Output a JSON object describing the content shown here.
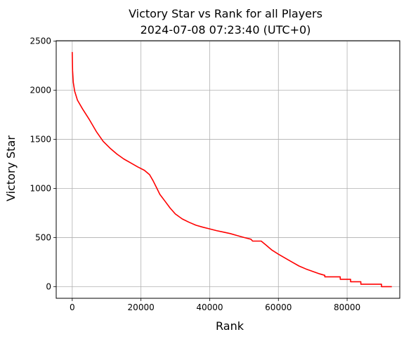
{
  "chart_data": {
    "type": "line",
    "title": "Victory Star vs Rank for all Players",
    "subtitle": "2024-07-08 07:23:40 (UTC+0)",
    "xlabel": "Rank",
    "ylabel": "Victory Star",
    "xlim": [
      -4670,
      95320
    ],
    "ylim": [
      -119,
      2505
    ],
    "xticks": [
      0,
      20000,
      40000,
      60000,
      80000
    ],
    "xtick_labels": [
      "0",
      "20000",
      "40000",
      "60000",
      "80000"
    ],
    "yticks": [
      0,
      500,
      1000,
      1500,
      2000,
      2500
    ],
    "ytick_labels": [
      "0",
      "500",
      "1000",
      "1500",
      "2000",
      "2500"
    ],
    "grid": true,
    "legend": "none",
    "series": [
      {
        "color": "#ff0000",
        "points": [
          [
            0,
            2390
          ],
          [
            100,
            2200
          ],
          [
            300,
            2080
          ],
          [
            700,
            1990
          ],
          [
            1500,
            1900
          ],
          [
            3000,
            1810
          ],
          [
            5000,
            1700
          ],
          [
            7000,
            1580
          ],
          [
            9000,
            1480
          ],
          [
            11000,
            1410
          ],
          [
            13000,
            1350
          ],
          [
            15000,
            1300
          ],
          [
            17000,
            1260
          ],
          [
            19000,
            1220
          ],
          [
            21000,
            1185
          ],
          [
            22500,
            1140
          ],
          [
            23500,
            1080
          ],
          [
            24500,
            1010
          ],
          [
            25500,
            940
          ],
          [
            27000,
            870
          ],
          [
            28500,
            800
          ],
          [
            30000,
            740
          ],
          [
            32000,
            690
          ],
          [
            34000,
            655
          ],
          [
            36000,
            625
          ],
          [
            38000,
            605
          ],
          [
            40000,
            588
          ],
          [
            42000,
            570
          ],
          [
            44000,
            555
          ],
          [
            46000,
            540
          ],
          [
            48000,
            520
          ],
          [
            50000,
            500
          ],
          [
            52000,
            483
          ],
          [
            52500,
            464
          ],
          [
            55000,
            464
          ],
          [
            56500,
            420
          ],
          [
            58000,
            375
          ],
          [
            60000,
            330
          ],
          [
            62000,
            290
          ],
          [
            64000,
            250
          ],
          [
            66000,
            210
          ],
          [
            68000,
            180
          ],
          [
            70000,
            155
          ],
          [
            72000,
            130
          ],
          [
            73500,
            115
          ],
          [
            73500,
            100
          ],
          [
            78000,
            100
          ],
          [
            78000,
            75
          ],
          [
            81000,
            75
          ],
          [
            81000,
            50
          ],
          [
            84000,
            50
          ],
          [
            84000,
            25
          ],
          [
            90000,
            25
          ],
          [
            90000,
            0
          ],
          [
            93000,
            0
          ]
        ]
      }
    ]
  }
}
